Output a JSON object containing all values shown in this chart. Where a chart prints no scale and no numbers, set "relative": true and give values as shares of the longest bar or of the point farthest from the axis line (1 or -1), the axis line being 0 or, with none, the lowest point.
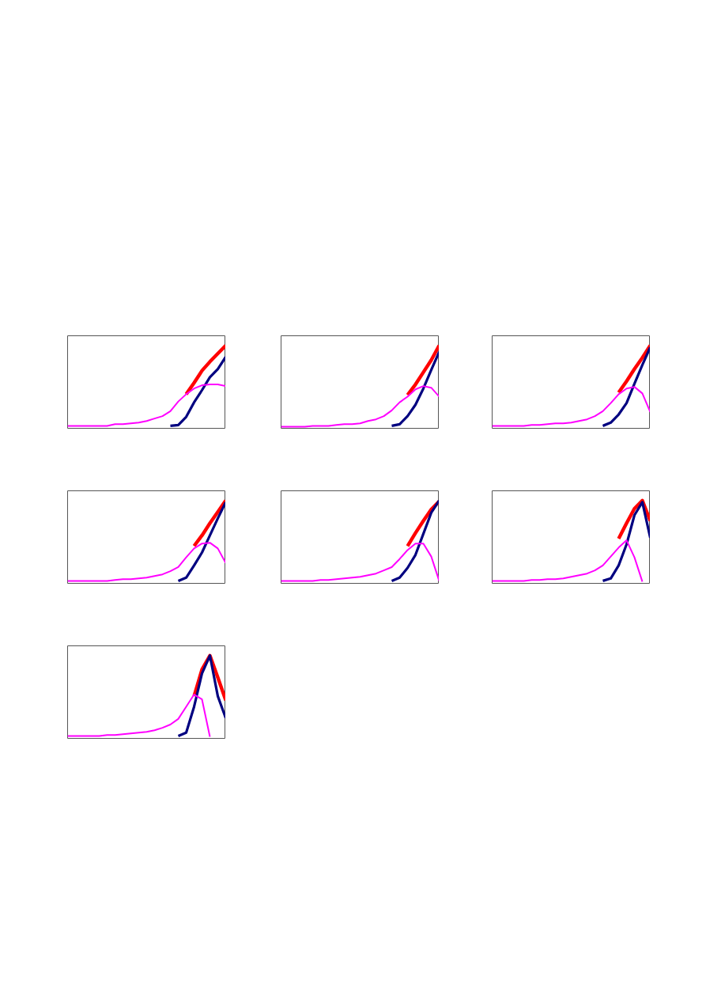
{
  "chart_data": [
    {
      "type": "line",
      "relative": true,
      "categories": [
        null,
        null,
        null,
        null,
        null,
        null,
        null,
        null,
        null,
        null,
        null,
        null,
        null,
        null,
        null,
        null,
        null,
        null,
        null,
        null,
        null
      ],
      "series": [
        {
          "color": "#ff0000",
          "values": [
            null,
            null,
            null,
            null,
            null,
            null,
            null,
            null,
            null,
            null,
            null,
            null,
            null,
            null,
            null,
            0.4,
            0.54,
            0.69,
            0.8,
            0.9,
            1.0
          ]
        },
        {
          "color": "#000080",
          "values": [
            null,
            null,
            null,
            null,
            null,
            null,
            null,
            null,
            null,
            null,
            null,
            null,
            null,
            0.01,
            0.02,
            0.12,
            0.3,
            0.45,
            0.61,
            0.71,
            0.86
          ]
        },
        {
          "color": "#ff00ff",
          "values": [
            0.01,
            0.01,
            0.01,
            0.01,
            0.01,
            0.01,
            0.03,
            0.03,
            0.04,
            0.05,
            0.07,
            0.1,
            0.13,
            0.19,
            0.31,
            0.4,
            0.47,
            0.51,
            0.52,
            0.52,
            0.5
          ]
        }
      ]
    },
    {
      "type": "line",
      "relative": true,
      "categories": [
        null,
        null,
        null,
        null,
        null,
        null,
        null,
        null,
        null,
        null,
        null,
        null,
        null,
        null,
        null,
        null,
        null,
        null,
        null,
        null,
        null
      ],
      "series": [
        {
          "color": "#ff0000",
          "values": [
            null,
            null,
            null,
            null,
            null,
            null,
            null,
            null,
            null,
            null,
            null,
            null,
            null,
            null,
            null,
            null,
            0.39,
            0.52,
            0.67,
            0.82,
            1.0
          ]
        },
        {
          "color": "#000080",
          "values": [
            null,
            null,
            null,
            null,
            null,
            null,
            null,
            null,
            null,
            null,
            null,
            null,
            null,
            null,
            0.01,
            0.03,
            0.13,
            0.27,
            0.47,
            0.7,
            0.92
          ]
        },
        {
          "color": "#ff00ff",
          "values": [
            0,
            0,
            0,
            0,
            0.01,
            0.01,
            0.01,
            0.02,
            0.03,
            0.03,
            0.04,
            0.07,
            0.09,
            0.13,
            0.2,
            0.3,
            0.37,
            0.46,
            0.5,
            0.48,
            0.37
          ]
        }
      ]
    },
    {
      "type": "line",
      "relative": true,
      "categories": [
        null,
        null,
        null,
        null,
        null,
        null,
        null,
        null,
        null,
        null,
        null,
        null,
        null,
        null,
        null,
        null,
        null,
        null,
        null,
        null,
        null
      ],
      "series": [
        {
          "color": "#ff0000",
          "values": [
            null,
            null,
            null,
            null,
            null,
            null,
            null,
            null,
            null,
            null,
            null,
            null,
            null,
            null,
            null,
            null,
            0.42,
            0.56,
            0.71,
            0.85,
            1.0
          ]
        },
        {
          "color": "#000080",
          "values": [
            null,
            null,
            null,
            null,
            null,
            null,
            null,
            null,
            null,
            null,
            null,
            null,
            null,
            null,
            0.01,
            0.05,
            0.15,
            0.29,
            0.53,
            0.76,
            0.98
          ]
        },
        {
          "color": "#ff00ff",
          "values": [
            0.01,
            0.01,
            0.01,
            0.01,
            0.01,
            0.02,
            0.02,
            0.03,
            0.04,
            0.04,
            0.05,
            0.07,
            0.09,
            0.13,
            0.19,
            0.29,
            0.4,
            0.47,
            0.49,
            0.41,
            0.18
          ]
        }
      ]
    },
    {
      "type": "line",
      "relative": true,
      "categories": [
        null,
        null,
        null,
        null,
        null,
        null,
        null,
        null,
        null,
        null,
        null,
        null,
        null,
        null,
        null,
        null,
        null,
        null,
        null,
        null,
        null
      ],
      "series": [
        {
          "color": "#ff0000",
          "values": [
            null,
            null,
            null,
            null,
            null,
            null,
            null,
            null,
            null,
            null,
            null,
            null,
            null,
            null,
            null,
            null,
            0.44,
            0.57,
            0.72,
            0.86,
            1.0
          ]
        },
        {
          "color": "#000080",
          "values": [
            null,
            null,
            null,
            null,
            null,
            null,
            null,
            null,
            null,
            null,
            null,
            null,
            null,
            null,
            0.01,
            0.05,
            0.2,
            0.36,
            0.57,
            0.78,
            0.98
          ]
        },
        {
          "color": "#ff00ff",
          "values": [
            0.01,
            0.01,
            0.01,
            0.01,
            0.01,
            0.01,
            0.02,
            0.03,
            0.03,
            0.04,
            0.05,
            0.07,
            0.09,
            0.13,
            0.18,
            0.3,
            0.41,
            0.47,
            0.48,
            0.41,
            0.23
          ]
        }
      ]
    },
    {
      "type": "line",
      "relative": true,
      "categories": [
        null,
        null,
        null,
        null,
        null,
        null,
        null,
        null,
        null,
        null,
        null,
        null,
        null,
        null,
        null,
        null,
        null,
        null,
        null,
        null,
        null
      ],
      "series": [
        {
          "color": "#ff0000",
          "values": [
            null,
            null,
            null,
            null,
            null,
            null,
            null,
            null,
            null,
            null,
            null,
            null,
            null,
            null,
            null,
            null,
            0.44,
            0.6,
            0.75,
            0.89,
            0.99
          ]
        },
        {
          "color": "#000080",
          "values": [
            null,
            null,
            null,
            null,
            null,
            null,
            null,
            null,
            null,
            null,
            null,
            null,
            null,
            null,
            0.01,
            0.05,
            0.17,
            0.33,
            0.59,
            0.85,
            1.0
          ]
        },
        {
          "color": "#ff00ff",
          "values": [
            0.01,
            0.01,
            0.01,
            0.01,
            0.01,
            0.02,
            0.02,
            0.03,
            0.04,
            0.05,
            0.06,
            0.08,
            0.1,
            0.14,
            0.18,
            0.28,
            0.39,
            0.47,
            0.47,
            0.31,
            0.01
          ]
        }
      ]
    },
    {
      "type": "line",
      "relative": true,
      "categories": [
        null,
        null,
        null,
        null,
        null,
        null,
        null,
        null,
        null,
        null,
        null,
        null,
        null,
        null,
        null,
        null,
        null,
        null,
        null,
        null,
        null
      ],
      "series": [
        {
          "color": "#ff0000",
          "values": [
            null,
            null,
            null,
            null,
            null,
            null,
            null,
            null,
            null,
            null,
            null,
            null,
            null,
            null,
            null,
            null,
            0.53,
            0.72,
            0.9,
            1.0,
            0.75
          ]
        },
        {
          "color": "#000080",
          "values": [
            null,
            null,
            null,
            null,
            null,
            null,
            null,
            null,
            null,
            null,
            null,
            null,
            null,
            null,
            0.01,
            0.04,
            0.2,
            0.46,
            0.82,
            0.98,
            0.54
          ]
        },
        {
          "color": "#ff00ff",
          "values": [
            0.01,
            0.01,
            0.01,
            0.01,
            0.01,
            0.02,
            0.02,
            0.03,
            0.03,
            0.04,
            0.06,
            0.08,
            0.1,
            0.14,
            0.2,
            0.31,
            0.42,
            0.51,
            0.3,
            0,
            null
          ]
        }
      ]
    },
    {
      "type": "line",
      "relative": true,
      "categories": [
        null,
        null,
        null,
        null,
        null,
        null,
        null,
        null,
        null,
        null,
        null,
        null,
        null,
        null,
        null,
        null,
        null,
        null,
        null,
        null,
        null
      ],
      "series": [
        {
          "color": "#ff0000",
          "values": [
            null,
            null,
            null,
            null,
            null,
            null,
            null,
            null,
            null,
            null,
            null,
            null,
            null,
            null,
            null,
            null,
            0.5,
            0.83,
            1.0,
            0.73,
            0.45
          ]
        },
        {
          "color": "#000080",
          "values": [
            null,
            null,
            null,
            null,
            null,
            null,
            null,
            null,
            null,
            null,
            null,
            null,
            null,
            null,
            0.01,
            0.05,
            0.37,
            0.78,
            1.0,
            0.5,
            0.23
          ]
        },
        {
          "color": "#ff00ff",
          "values": [
            0.01,
            0.01,
            0.01,
            0.01,
            0.01,
            0.02,
            0.02,
            0.03,
            0.04,
            0.05,
            0.06,
            0.08,
            0.11,
            0.15,
            0.22,
            0.37,
            0.52,
            0.46,
            0,
            null,
            null
          ]
        }
      ]
    }
  ]
}
